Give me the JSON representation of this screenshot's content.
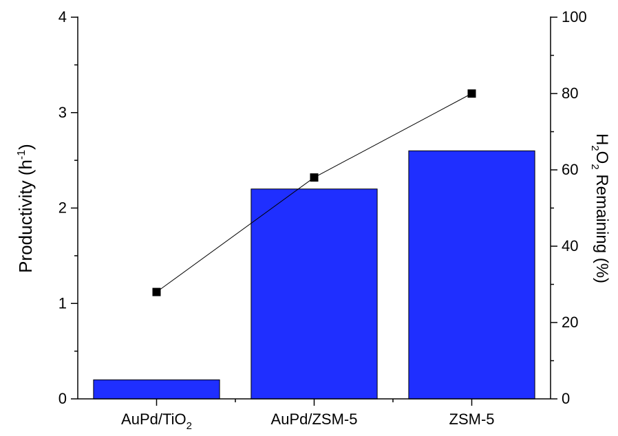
{
  "chart_data": {
    "type": "bar",
    "categories": [
      "AuPd/TiO",
      "AuPd/ZSM-5",
      "ZSM-5"
    ],
    "category_subscripts": [
      "2",
      "",
      ""
    ],
    "series": [
      {
        "values": [
          0.2,
          2.2,
          2.6
        ],
        "axis": "left",
        "render": "bar"
      },
      {
        "values": [
          28,
          58,
          80
        ],
        "axis": "right",
        "render": "line-square-markers"
      }
    ],
    "left_axis": {
      "label": "Productivity (h-1)",
      "ylim": [
        0,
        4
      ],
      "ticks": [
        "0",
        "1",
        "2",
        "3",
        "4"
      ]
    },
    "right_axis": {
      "label": "H2O2 Remaining (%)",
      "ylim": [
        0,
        100
      ],
      "ticks": [
        "0",
        "20",
        "40",
        "60",
        "80",
        "100"
      ]
    },
    "grid": false,
    "legend": "none",
    "colors": {
      "bar_fill": "#1f2fff",
      "bar_stroke": "#000000",
      "line": "#000000",
      "marker": "#000000"
    }
  }
}
